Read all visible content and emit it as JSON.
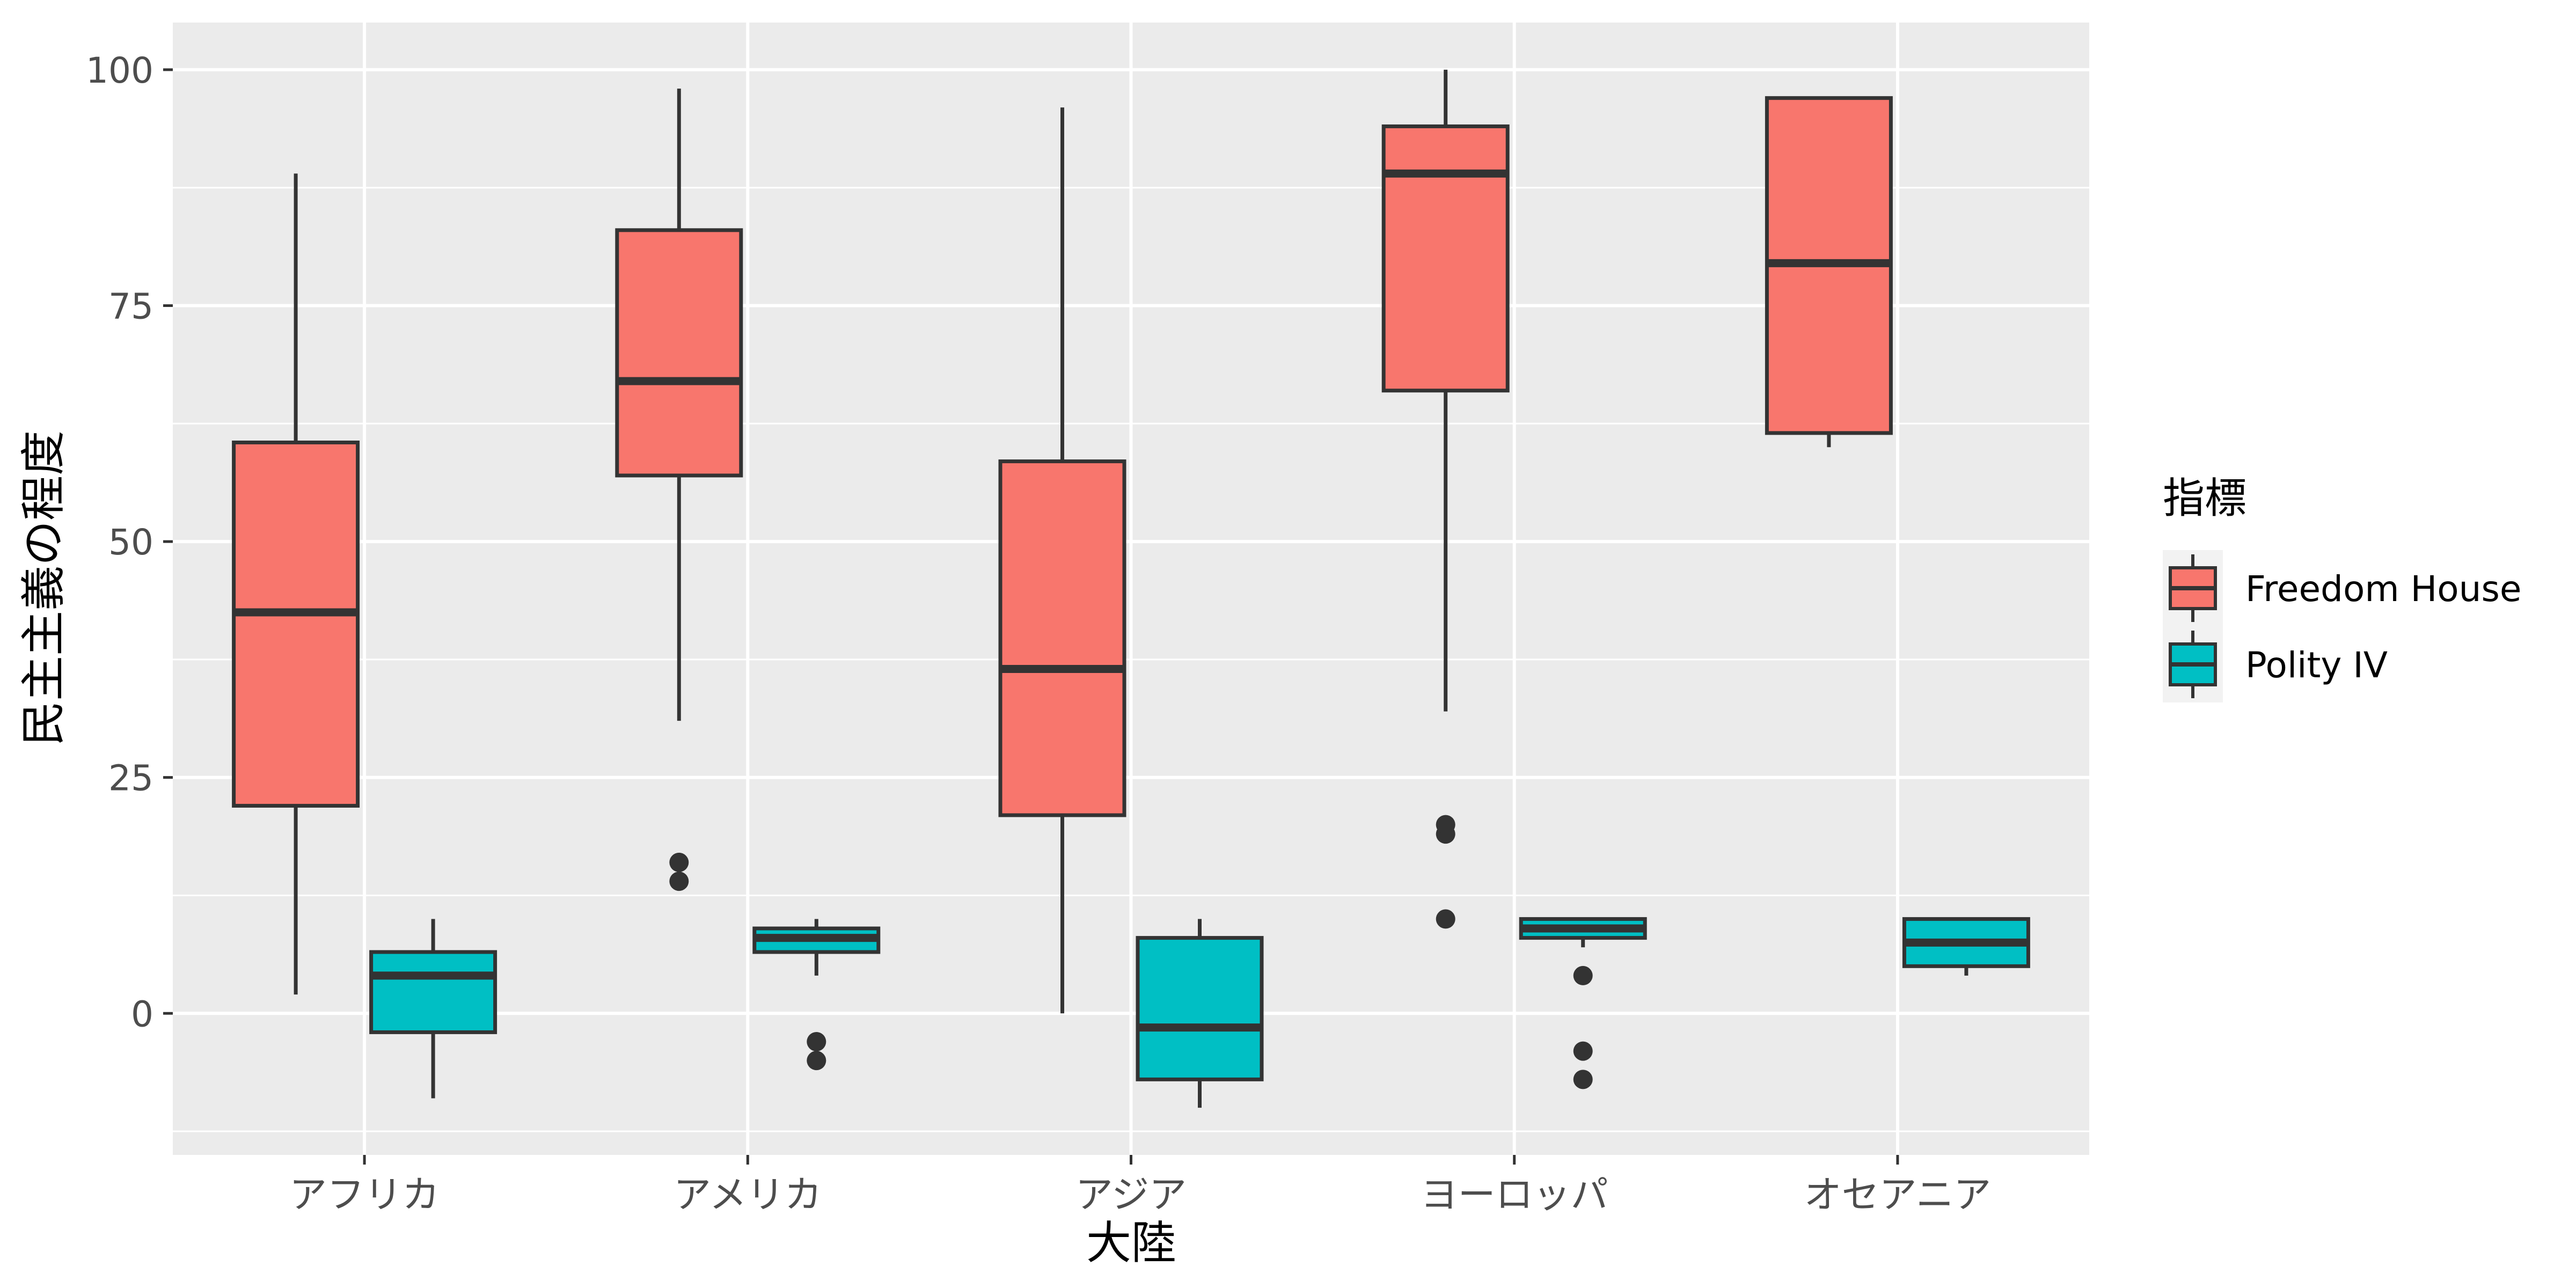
{
  "chart_data": {
    "type": "box",
    "xlabel": "大陸",
    "ylabel": "民主主義の程度",
    "ylim": [
      -15,
      105
    ],
    "yticks": [
      0,
      25,
      50,
      75,
      100
    ],
    "grid": true,
    "legend_position": "right",
    "legend_title": "指標",
    "categories": [
      "アフリカ",
      "アメリカ",
      "アジア",
      "ヨーロッパ",
      "オセアニア"
    ],
    "series": [
      {
        "name": "Freedom House",
        "color": "#F8766D",
        "boxes": [
          {
            "min": 2,
            "q1": 22,
            "median": 42.5,
            "q3": 60.5,
            "max": 89,
            "outliers": []
          },
          {
            "min": 31,
            "q1": 57,
            "median": 67,
            "q3": 83,
            "max": 98,
            "outliers": [
              14,
              16
            ]
          },
          {
            "min": 0,
            "q1": 21,
            "median": 36.5,
            "q3": 58.5,
            "max": 96,
            "outliers": []
          },
          {
            "min": 32,
            "q1": 66,
            "median": 89,
            "q3": 94,
            "max": 100,
            "outliers": [
              10,
              19,
              20
            ]
          },
          {
            "min": 60,
            "q1": 61.5,
            "median": 79.5,
            "q3": 97,
            "max": 97,
            "outliers": []
          }
        ]
      },
      {
        "name": "Polity IV",
        "color": "#00BFC4",
        "boxes": [
          {
            "min": -9,
            "q1": -2,
            "median": 4,
            "q3": 6.5,
            "max": 10,
            "outliers": []
          },
          {
            "min": 4,
            "q1": 6.5,
            "median": 8,
            "q3": 9,
            "max": 10,
            "outliers": [
              -3,
              -5
            ]
          },
          {
            "min": -10,
            "q1": -7,
            "median": -1.5,
            "q3": 8,
            "max": 10,
            "outliers": []
          },
          {
            "min": 7,
            "q1": 8,
            "median": 9,
            "q3": 10,
            "max": 10,
            "outliers": [
              4,
              -4,
              -7
            ]
          },
          {
            "min": 4,
            "q1": 5,
            "median": 7.5,
            "q3": 10,
            "max": 10,
            "outliers": []
          }
        ]
      }
    ]
  }
}
